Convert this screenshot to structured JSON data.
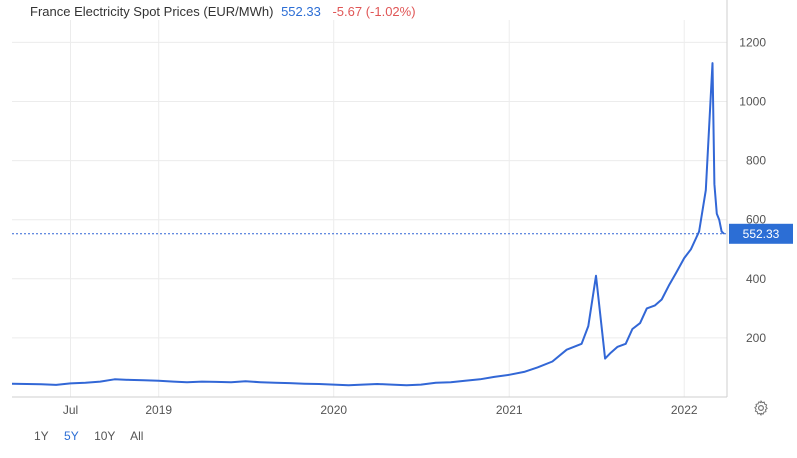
{
  "header": {
    "title": "France Electricity Spot Prices (EUR/MWh)",
    "last": "552.33",
    "change": "-5.67 (-1.02%)"
  },
  "colors": {
    "line": "#3267d6",
    "label_bg": "#2c6ed5",
    "grid": "#ececec",
    "change": "#e05656",
    "range_active": "#2c6ed5",
    "range": "#555555"
  },
  "ranges": [
    {
      "label": "1Y",
      "active": false
    },
    {
      "label": "5Y",
      "active": true
    },
    {
      "label": "10Y",
      "active": false
    },
    {
      "label": "All",
      "active": false
    }
  ],
  "settings_icon": "gear-icon",
  "chart_data": {
    "type": "line",
    "title": "France Electricity Spot Prices (EUR/MWh)",
    "xlabel": "",
    "ylabel": "",
    "x_ticks": [
      "Jul",
      "2019",
      "2020",
      "2021",
      "2022"
    ],
    "y_ticks": [
      200,
      400,
      600,
      800,
      1000,
      1200
    ],
    "ylim": [
      0,
      1250
    ],
    "grid": true,
    "last_value_label": "552.33",
    "series": [
      {
        "x": [
          "2018-03",
          "2018-04",
          "2018-05",
          "2018-06",
          "2018-07",
          "2018-08",
          "2018-09",
          "2018-10",
          "2018-11",
          "2018-12",
          "2019-01",
          "2019-02",
          "2019-03",
          "2019-04",
          "2019-05",
          "2019-06",
          "2019-07",
          "2019-08",
          "2019-09",
          "2019-10",
          "2019-11",
          "2019-12",
          "2020-01",
          "2020-02",
          "2020-03",
          "2020-04",
          "2020-05",
          "2020-06",
          "2020-07",
          "2020-08",
          "2020-09",
          "2020-10",
          "2020-11",
          "2020-12",
          "2021-01",
          "2021-02",
          "2021-03",
          "2021-04",
          "2021-05",
          "2021-06",
          "2021-06-15",
          "2021-07",
          "2021-07-20",
          "2021-08",
          "2021-08-15",
          "2021-09",
          "2021-09-15",
          "2021-10",
          "2021-10-15",
          "2021-11",
          "2021-11-15",
          "2021-12",
          "2021-12-15",
          "2022-01",
          "2022-01-15",
          "2022-02",
          "2022-02-15",
          "2022-03-01",
          "2022-03-05",
          "2022-03-10",
          "2022-03-15",
          "2022-03-20",
          "2022-03-25"
        ],
        "values": [
          45,
          44,
          43,
          41,
          46,
          48,
          52,
          60,
          58,
          57,
          55,
          52,
          50,
          52,
          51,
          50,
          53,
          50,
          48,
          47,
          45,
          44,
          42,
          40,
          42,
          44,
          42,
          40,
          42,
          48,
          50,
          55,
          60,
          68,
          75,
          85,
          100,
          120,
          160,
          180,
          240,
          410,
          130,
          150,
          170,
          180,
          230,
          250,
          300,
          310,
          330,
          380,
          420,
          470,
          500,
          560,
          700,
          1130,
          720,
          620,
          600,
          560,
          552.33
        ]
      }
    ]
  }
}
